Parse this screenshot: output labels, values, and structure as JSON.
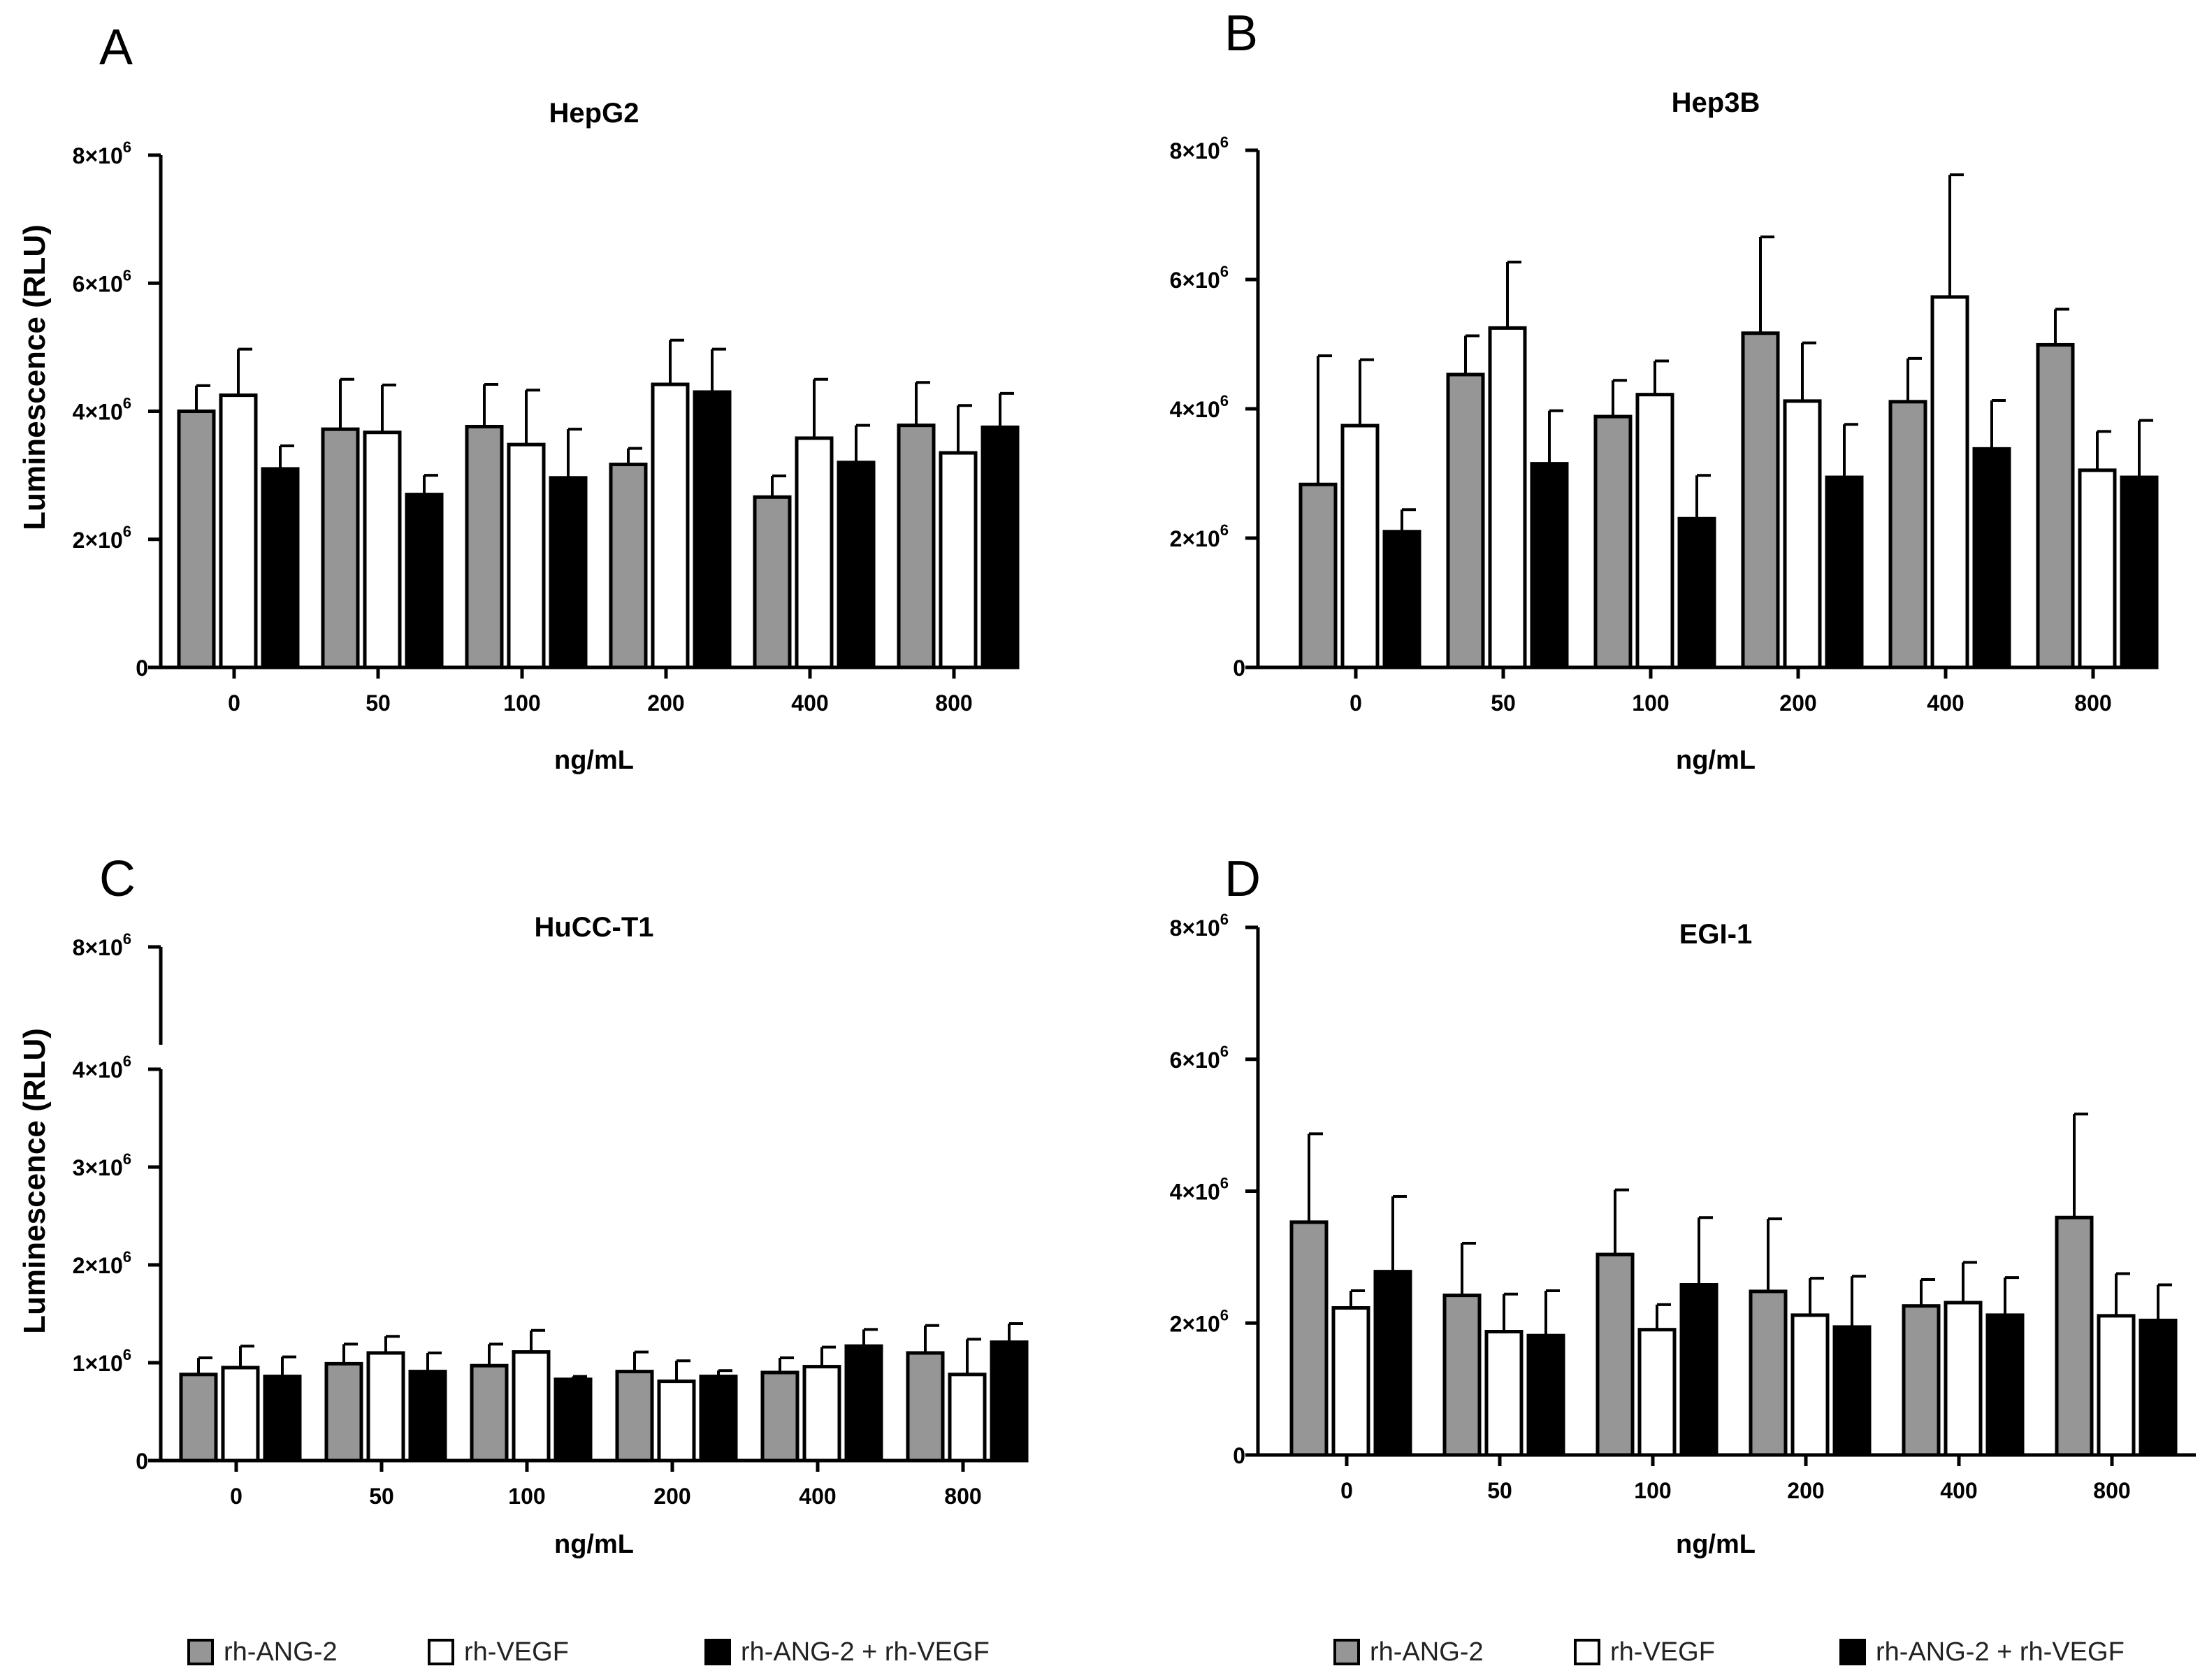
{
  "legend": {
    "items": [
      {
        "label": "rh-ANG-2",
        "color": "#969696"
      },
      {
        "label": "rh-VEGF",
        "color": "#ffffff"
      },
      {
        "label": "rh-ANG-2 + rh-VEGF",
        "color": "#000000"
      }
    ]
  },
  "chart_data": [
    {
      "type": "bar",
      "panel": "A",
      "title": "HepG2",
      "xlabel": "ng/mL",
      "ylabel": "Luminescence (RLU)",
      "categories": [
        "0",
        "50",
        "100",
        "200",
        "400",
        "800"
      ],
      "ylim": [
        0,
        8000000
      ],
      "yticks": [
        {
          "value": 0,
          "label": "0"
        },
        {
          "value": 2000000,
          "base": "2×10",
          "exp": "6"
        },
        {
          "value": 4000000,
          "base": "4×10",
          "exp": "6"
        },
        {
          "value": 6000000,
          "base": "6×10",
          "exp": "6"
        },
        {
          "value": 8000000,
          "base": "8×10",
          "exp": "6"
        }
      ],
      "error_bars": "upper",
      "series": [
        {
          "name": "rh-ANG-2",
          "color": "#969696",
          "values": [
            4000000,
            3720000,
            3760000,
            3170000,
            2660000,
            3780000
          ],
          "errors": [
            400000,
            780000,
            660000,
            250000,
            330000,
            670000
          ]
        },
        {
          "name": "rh-VEGF",
          "color": "#ffffff",
          "values": [
            4250000,
            3670000,
            3480000,
            4420000,
            3580000,
            3350000
          ],
          "errors": [
            720000,
            740000,
            850000,
            690000,
            920000,
            740000
          ]
        },
        {
          "name": "rh-ANG-2 + rh-VEGF",
          "color": "#000000",
          "values": [
            3100000,
            2700000,
            2960000,
            4300000,
            3200000,
            3750000
          ],
          "errors": [
            360000,
            300000,
            760000,
            670000,
            580000,
            530000
          ]
        }
      ]
    },
    {
      "type": "bar",
      "panel": "B",
      "title": "Hep3B",
      "xlabel": "ng/mL",
      "ylabel": "",
      "categories": [
        "0",
        "50",
        "100",
        "200",
        "400",
        "800"
      ],
      "ylim": [
        0,
        8000000
      ],
      "yticks": [
        {
          "value": 0,
          "label": "0"
        },
        {
          "value": 2000000,
          "base": "2×10",
          "exp": "6"
        },
        {
          "value": 4000000,
          "base": "4×10",
          "exp": "6"
        },
        {
          "value": 6000000,
          "base": "6×10",
          "exp": "6"
        },
        {
          "value": 8000000,
          "base": "8×10",
          "exp": "6"
        }
      ],
      "error_bars": "upper",
      "series": [
        {
          "name": "rh-ANG-2",
          "color": "#969696",
          "values": [
            2830000,
            4530000,
            3880000,
            5170000,
            4110000,
            4990000
          ],
          "errors": [
            1990000,
            600000,
            560000,
            1490000,
            670000,
            550000
          ]
        },
        {
          "name": "rh-VEGF",
          "color": "#ffffff",
          "values": [
            3740000,
            5250000,
            4220000,
            4120000,
            5730000,
            3050000
          ],
          "errors": [
            1020000,
            1020000,
            520000,
            900000,
            1890000,
            600000
          ]
        },
        {
          "name": "rh-ANG-2 + rh-VEGF",
          "color": "#000000",
          "values": [
            2100000,
            3150000,
            2300000,
            2940000,
            3380000,
            2940000
          ],
          "errors": [
            340000,
            820000,
            670000,
            820000,
            750000,
            880000
          ]
        }
      ]
    },
    {
      "type": "bar",
      "panel": "C",
      "title": "HuCC-T1",
      "xlabel": "ng/mL",
      "ylabel": "Luminescence (RLU)",
      "categories": [
        "0",
        "50",
        "100",
        "200",
        "400",
        "800"
      ],
      "ylim": [
        0,
        8000000
      ],
      "axis_break": {
        "from": 4000000,
        "to": 8000000
      },
      "yticks": [
        {
          "value": 0,
          "label": "0"
        },
        {
          "value": 1000000,
          "base": "1×10",
          "exp": "6"
        },
        {
          "value": 2000000,
          "base": "2×10",
          "exp": "6"
        },
        {
          "value": 3000000,
          "base": "3×10",
          "exp": "6"
        },
        {
          "value": 4000000,
          "base": "4×10",
          "exp": "6"
        },
        {
          "value": 8000000,
          "base": "8×10",
          "exp": "6"
        }
      ],
      "error_bars": "upper",
      "series": [
        {
          "name": "rh-ANG-2",
          "color": "#969696",
          "values": [
            880000,
            990000,
            970000,
            910000,
            900000,
            1100000
          ],
          "errors": [
            170000,
            200000,
            220000,
            200000,
            150000,
            280000
          ]
        },
        {
          "name": "rh-VEGF",
          "color": "#ffffff",
          "values": [
            950000,
            1100000,
            1110000,
            810000,
            960000,
            880000
          ],
          "errors": [
            220000,
            170000,
            220000,
            210000,
            200000,
            360000
          ]
        },
        {
          "name": "rh-ANG-2 + rh-VEGF",
          "color": "#000000",
          "values": [
            860000,
            910000,
            830000,
            860000,
            1170000,
            1210000
          ],
          "errors": [
            200000,
            190000,
            30000,
            60000,
            170000,
            190000
          ]
        }
      ]
    },
    {
      "type": "bar",
      "panel": "D",
      "title": "EGI-1",
      "xlabel": "ng/mL",
      "ylabel": "",
      "categories": [
        "0",
        "50",
        "100",
        "200",
        "400",
        "800"
      ],
      "ylim": [
        0,
        8000000
      ],
      "yticks": [
        {
          "value": 0,
          "label": "0"
        },
        {
          "value": 2000000,
          "base": "2×10",
          "exp": "6"
        },
        {
          "value": 4000000,
          "base": "4×10",
          "exp": "6"
        },
        {
          "value": 6000000,
          "base": "6×10",
          "exp": "6"
        },
        {
          "value": 8000000,
          "base": "8×10",
          "exp": "6"
        }
      ],
      "error_bars": "upper",
      "series": [
        {
          "name": "rh-ANG-2",
          "color": "#969696",
          "values": [
            3530000,
            2420000,
            3040000,
            2480000,
            2260000,
            3600000
          ],
          "errors": [
            1340000,
            790000,
            980000,
            1100000,
            400000,
            1570000
          ]
        },
        {
          "name": "rh-VEGF",
          "color": "#ffffff",
          "values": [
            2230000,
            1870000,
            1900000,
            2120000,
            2310000,
            2110000
          ],
          "errors": [
            260000,
            570000,
            380000,
            560000,
            610000,
            640000
          ]
        },
        {
          "name": "rh-ANG-2 + rh-VEGF",
          "color": "#000000",
          "values": [
            2780000,
            1810000,
            2580000,
            1940000,
            2120000,
            2040000
          ],
          "errors": [
            1140000,
            680000,
            1020000,
            770000,
            570000,
            540000
          ]
        }
      ]
    }
  ]
}
